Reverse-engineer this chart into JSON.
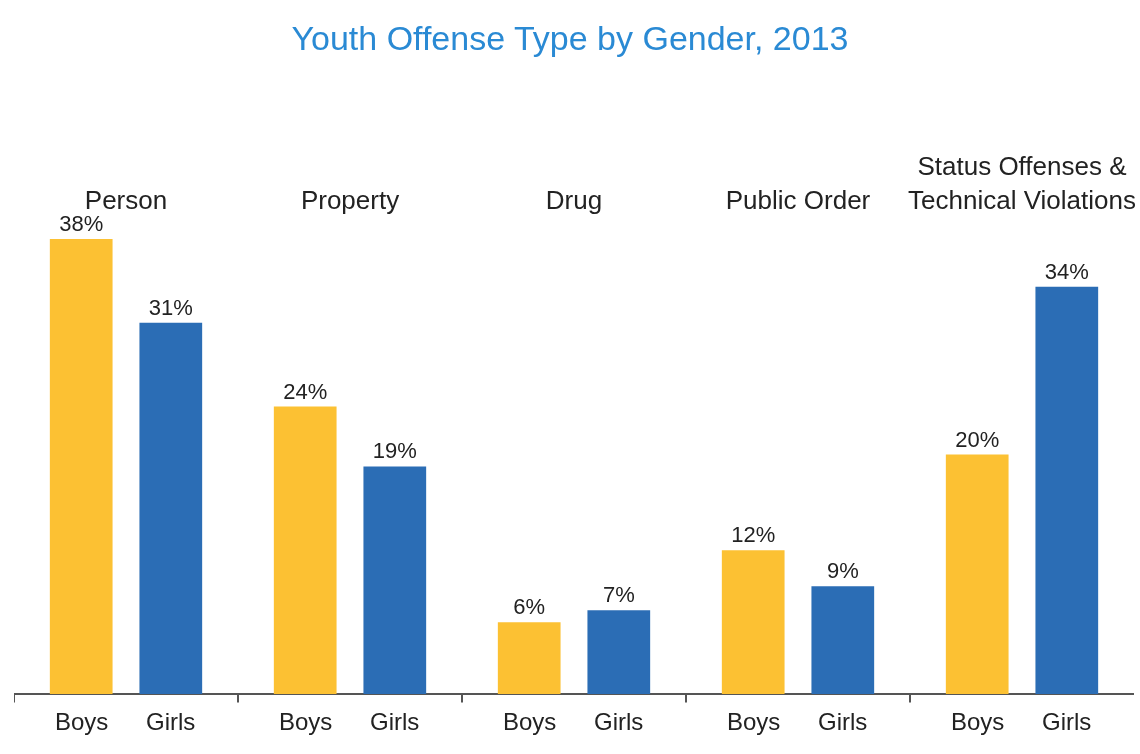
{
  "chart_data": {
    "type": "bar",
    "title": "Youth Offense Type by Gender, 2013",
    "categories": [
      "Person",
      "Property",
      "Drug",
      "Public Order",
      "Status Offenses & Technical Violations"
    ],
    "series": [
      {
        "name": "Boys",
        "color": "#fcc133",
        "values": [
          38,
          24,
          6,
          12,
          20
        ],
        "value_labels": [
          "38%",
          "24%",
          "6%",
          "12%",
          "20%"
        ]
      },
      {
        "name": "Girls",
        "color": "#2b6db5",
        "values": [
          31,
          19,
          7,
          9,
          34
        ],
        "value_labels": [
          "31%",
          "19%",
          "7%",
          "9%",
          "34%"
        ]
      }
    ],
    "grid": false,
    "legend": false
  }
}
